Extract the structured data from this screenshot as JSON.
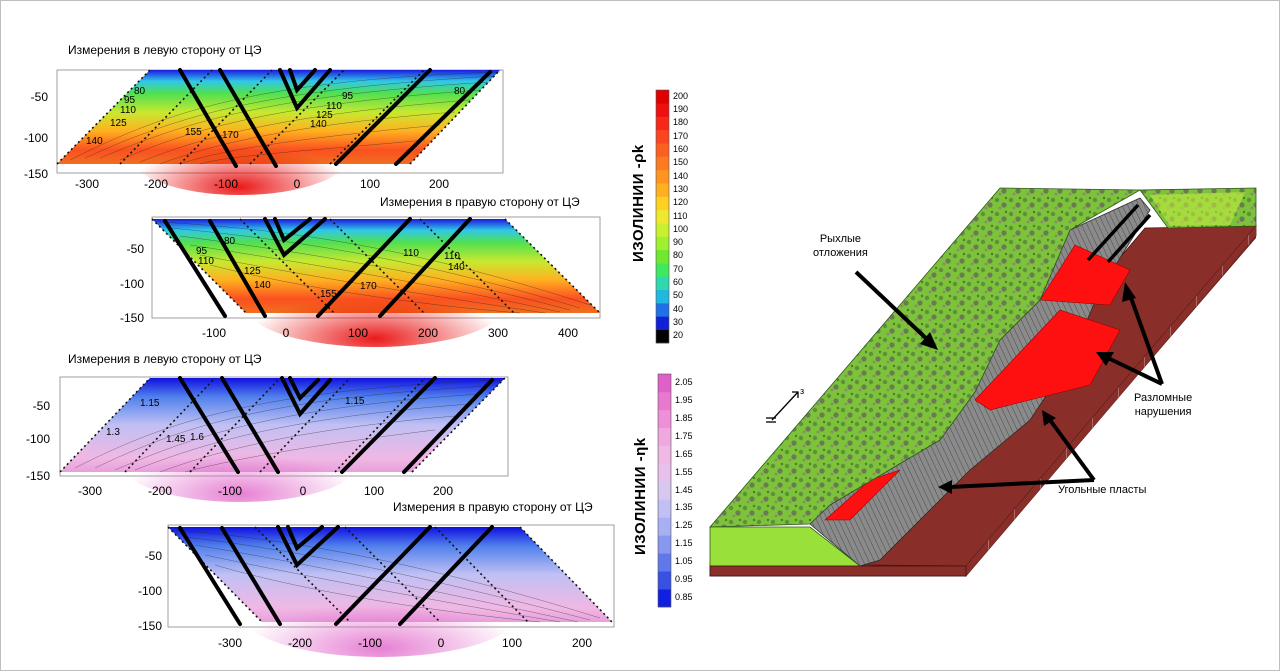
{
  "panels": [
    {
      "title": "Измерения в левую сторону от ЦЭ",
      "x_ticks": [
        "-300",
        "-200",
        "-100",
        "0",
        "100",
        "200"
      ],
      "y_ticks": [
        "-50",
        "-100",
        "-150"
      ],
      "contour_labels": [
        "80",
        "95",
        "110",
        "125",
        "140",
        "155",
        "170",
        "95",
        "110",
        "125",
        "140",
        "80"
      ]
    },
    {
      "title": "Измерения в правую сторону от ЦЭ",
      "x_ticks": [
        "-100",
        "0",
        "100",
        "200",
        "300",
        "400"
      ],
      "y_ticks": [
        "-50",
        "-100",
        "-150"
      ],
      "contour_labels": [
        "80",
        "95",
        "110",
        "125",
        "140",
        "155",
        "170",
        "110",
        "110",
        "140"
      ]
    },
    {
      "title": "Измерения в левую сторону от ЦЭ",
      "x_ticks": [
        "-300",
        "-200",
        "-100",
        "0",
        "100",
        "200"
      ],
      "y_ticks": [
        "-50",
        "-100",
        "-150"
      ],
      "contour_labels": [
        "1.15",
        "1.3",
        "1.45",
        "1.6",
        "1.15"
      ]
    },
    {
      "title": "Измерения в правую сторону от ЦЭ",
      "x_ticks": [
        "-300",
        "-200",
        "-100",
        "0",
        "100",
        "200"
      ],
      "y_ticks": [
        "-50",
        "-100",
        "-150"
      ],
      "contour_labels": []
    }
  ],
  "colorbars": [
    {
      "title": "ИЗОЛИНИИ -ρk",
      "values": [
        "200",
        "190",
        "180",
        "170",
        "160",
        "150",
        "140",
        "130",
        "120",
        "110",
        "100",
        "90",
        "80",
        "70",
        "60",
        "50",
        "40",
        "30",
        "20"
      ],
      "colors": [
        "#e00000",
        "#ee1010",
        "#f82818",
        "#fb4520",
        "#fc6020",
        "#fd7a20",
        "#ff9420",
        "#ffb020",
        "#ffd020",
        "#f0e830",
        "#c8f030",
        "#a0f030",
        "#70e830",
        "#40e860",
        "#30d8b0",
        "#20b8e0",
        "#2070e8",
        "#1020d8",
        "#000000"
      ]
    },
    {
      "title": "ИЗОЛИНИИ -ηk",
      "values": [
        "2.05",
        "1.95",
        "1.85",
        "1.75",
        "1.65",
        "1.55",
        "1.45",
        "1.35",
        "1.25",
        "1.15",
        "1.05",
        "0.95",
        "0.85"
      ],
      "colors": [
        "#e060c8",
        "#e878d0",
        "#ee90d8",
        "#f0a8e0",
        "#f0b8e4",
        "#e8c0ec",
        "#d8c8f0",
        "#c0c0f4",
        "#a8b0f4",
        "#8898f0",
        "#6078ec",
        "#3850e4",
        "#1020e0"
      ]
    }
  ],
  "block_annotations": {
    "loose": [
      "Рыхлые",
      "отложения"
    ],
    "faults": [
      "Разломные",
      "нарушения"
    ],
    "coal": "Угольные пласты",
    "north": "з"
  }
}
